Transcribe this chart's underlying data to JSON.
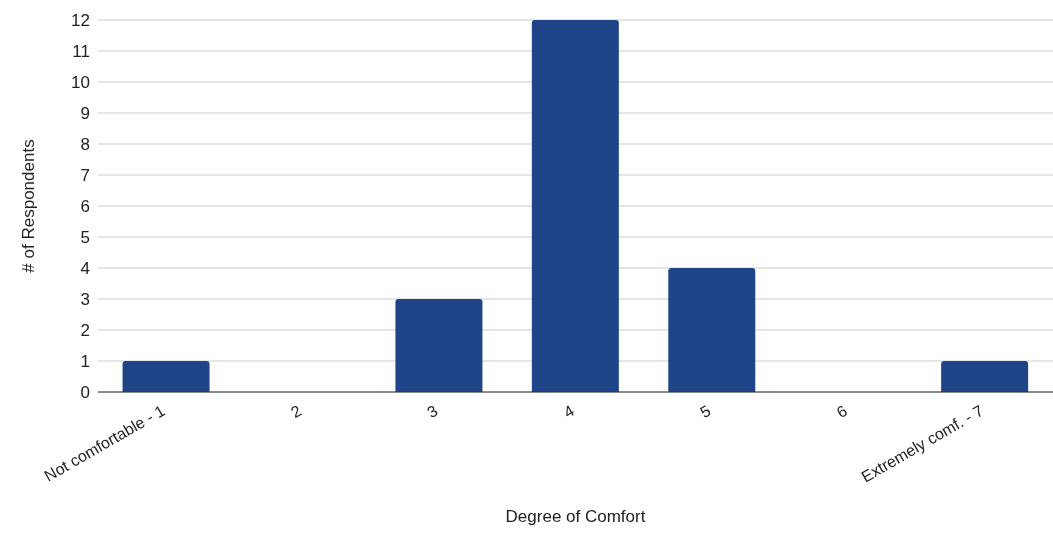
{
  "chart_data": {
    "type": "bar",
    "xlabel": "Degree of Comfort",
    "ylabel": "# of Respondents",
    "categories": [
      "Not comfortable - 1",
      "2",
      "3",
      "4",
      "5",
      "6",
      "Extremely comf. - 7"
    ],
    "values": [
      1,
      0,
      3,
      12,
      4,
      0,
      1
    ],
    "color": "#1f4588",
    "ylim": [
      0,
      12
    ],
    "yticks": [
      0,
      1,
      2,
      3,
      4,
      5,
      6,
      7,
      8,
      9,
      10,
      11,
      12
    ],
    "grid": "y"
  }
}
